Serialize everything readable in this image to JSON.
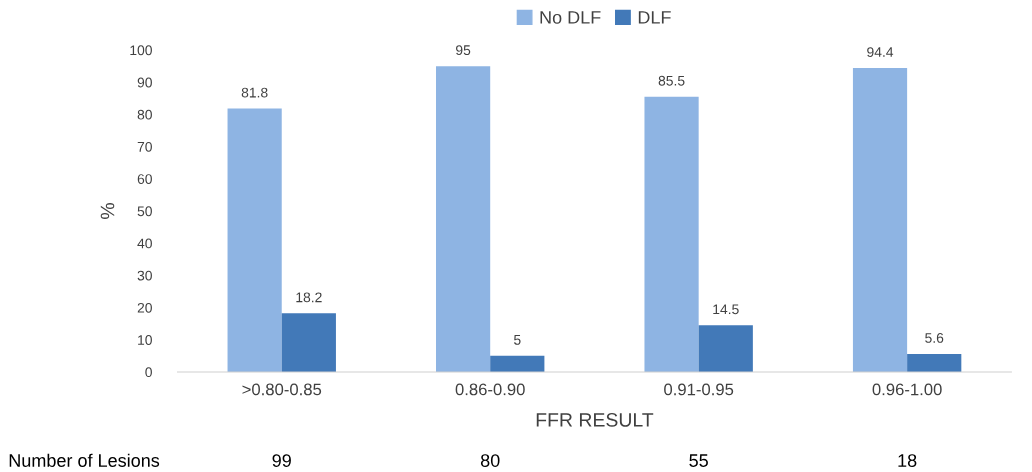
{
  "chart_data": {
    "type": "bar",
    "xlabel": "FFR RESULT",
    "ylabel": "%",
    "categories": [
      ">0.80-0.85",
      "0.86-0.90",
      "0.91-0.95",
      "0.96-1.00"
    ],
    "series": [
      {
        "name": "No DLF",
        "color": "#8eb4e3",
        "values": [
          81.8,
          95,
          85.5,
          94.4
        ]
      },
      {
        "name": "DLF",
        "color": "#4279b8",
        "values": [
          18.2,
          5,
          14.5,
          5.6
        ]
      }
    ],
    "ylim": [
      0,
      100
    ],
    "yticks": [
      0,
      10,
      20,
      30,
      40,
      50,
      60,
      70,
      80,
      90,
      100
    ],
    "data_labels": true,
    "grid": false,
    "legend": "top",
    "annotations": [
      "Number of Lesions",
      "99",
      "80",
      "55",
      "18"
    ]
  }
}
